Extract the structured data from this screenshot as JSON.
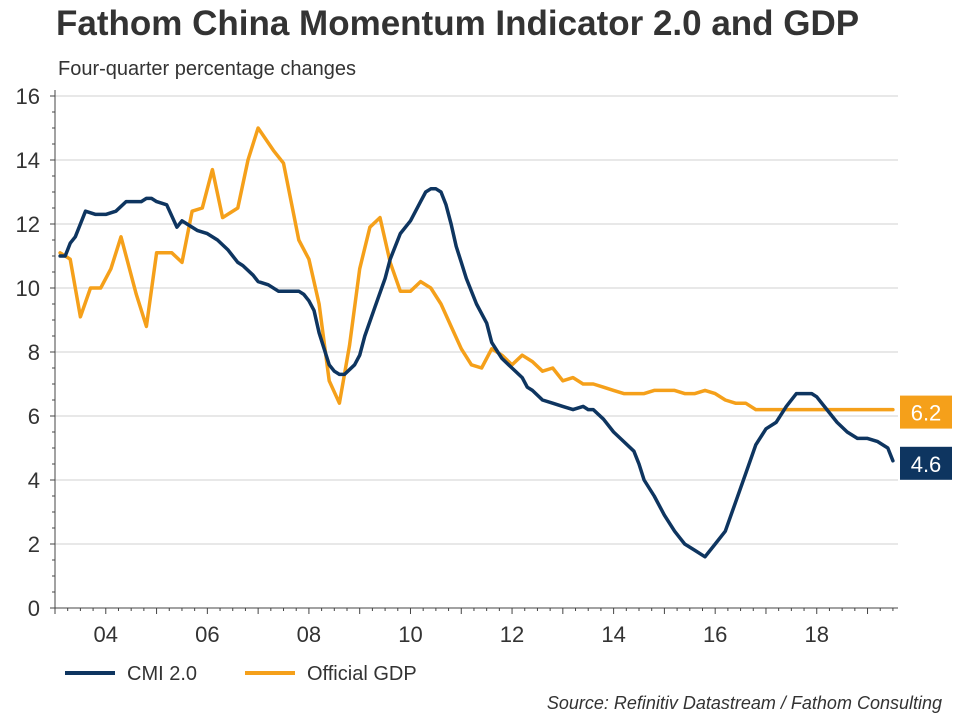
{
  "title": "Fathom China Momentum Indicator 2.0 and GDP",
  "subtitle": "Four-quarter percentage changes",
  "source": "Source: Refinitiv Datastream / Fathom Consulting",
  "chart_data": {
    "type": "line",
    "title": "Fathom China Momentum Indicator 2.0 and GDP",
    "subtitle": "Four-quarter percentage changes",
    "xlabel": "",
    "ylabel": "",
    "xlim": [
      2003.0,
      2019.6
    ],
    "ylim": [
      0,
      16
    ],
    "y_ticks": [
      0,
      2,
      4,
      6,
      8,
      10,
      12,
      14,
      16
    ],
    "x_ticks": [
      {
        "value": 2004,
        "label": "04"
      },
      {
        "value": 2006,
        "label": "06"
      },
      {
        "value": 2008,
        "label": "08"
      },
      {
        "value": 2010,
        "label": "10"
      },
      {
        "value": 2012,
        "label": "12"
      },
      {
        "value": 2014,
        "label": "14"
      },
      {
        "value": 2016,
        "label": "16"
      },
      {
        "value": 2018,
        "label": "18"
      }
    ],
    "grid": "horizontal",
    "legend_position": "bottom-left",
    "series": [
      {
        "name": "CMI 2.0",
        "color": "#0e3560",
        "end_label": "4.6",
        "x": [
          2003.1,
          2003.2,
          2003.3,
          2003.4,
          2003.5,
          2003.6,
          2003.8,
          2004.0,
          2004.2,
          2004.4,
          2004.5,
          2004.7,
          2004.8,
          2004.9,
          2005.0,
          2005.2,
          2005.4,
          2005.5,
          2005.6,
          2005.8,
          2006.0,
          2006.2,
          2006.4,
          2006.6,
          2006.7,
          2006.9,
          2007.0,
          2007.2,
          2007.4,
          2007.5,
          2007.6,
          2007.8,
          2007.9,
          2008.0,
          2008.1,
          2008.2,
          2008.4,
          2008.5,
          2008.6,
          2008.7,
          2008.9,
          2009.0,
          2009.1,
          2009.3,
          2009.5,
          2009.6,
          2009.8,
          2010.0,
          2010.2,
          2010.3,
          2010.4,
          2010.5,
          2010.6,
          2010.7,
          2010.8,
          2010.9,
          2011.0,
          2011.1,
          2011.3,
          2011.5,
          2011.6,
          2011.8,
          2012.0,
          2012.2,
          2012.3,
          2012.4,
          2012.6,
          2012.8,
          2013.0,
          2013.2,
          2013.4,
          2013.5,
          2013.6,
          2013.8,
          2014.0,
          2014.2,
          2014.4,
          2014.5,
          2014.6,
          2014.8,
          2015.0,
          2015.2,
          2015.3,
          2015.4,
          2015.6,
          2015.8,
          2016.0,
          2016.2,
          2016.4,
          2016.6,
          2016.8,
          2017.0,
          2017.2,
          2017.4,
          2017.6,
          2017.8,
          2017.9,
          2018.0,
          2018.2,
          2018.4,
          2018.6,
          2018.8,
          2019.0,
          2019.2,
          2019.4,
          2019.5
        ],
        "values": [
          11.0,
          11.0,
          11.4,
          11.6,
          12.0,
          12.4,
          12.3,
          12.3,
          12.4,
          12.7,
          12.7,
          12.7,
          12.8,
          12.8,
          12.7,
          12.6,
          11.9,
          12.1,
          12.0,
          11.8,
          11.7,
          11.5,
          11.2,
          10.8,
          10.7,
          10.4,
          10.2,
          10.1,
          9.9,
          9.9,
          9.9,
          9.9,
          9.8,
          9.6,
          9.3,
          8.6,
          7.6,
          7.4,
          7.3,
          7.3,
          7.6,
          7.9,
          8.5,
          9.4,
          10.3,
          10.9,
          11.7,
          12.1,
          12.7,
          13.0,
          13.1,
          13.1,
          13.0,
          12.6,
          12.0,
          11.3,
          10.8,
          10.3,
          9.5,
          8.9,
          8.3,
          7.8,
          7.5,
          7.2,
          6.9,
          6.8,
          6.5,
          6.4,
          6.3,
          6.2,
          6.3,
          6.2,
          6.2,
          5.9,
          5.5,
          5.2,
          4.9,
          4.5,
          4.0,
          3.5,
          2.9,
          2.4,
          2.2,
          2.0,
          1.8,
          1.6,
          2.0,
          2.4,
          3.3,
          4.2,
          5.1,
          5.6,
          5.8,
          6.3,
          6.7,
          6.7,
          6.7,
          6.6,
          6.2,
          5.8,
          5.5,
          5.3,
          5.3,
          5.2,
          5.0,
          4.6
        ]
      },
      {
        "name": "Official GDP",
        "color": "#f5a01a",
        "end_label": "6.2",
        "x": [
          2003.1,
          2003.3,
          2003.5,
          2003.7,
          2003.9,
          2004.1,
          2004.3,
          2004.6,
          2004.8,
          2005.0,
          2005.3,
          2005.5,
          2005.7,
          2005.9,
          2006.1,
          2006.3,
          2006.6,
          2006.8,
          2007.0,
          2007.3,
          2007.5,
          2007.8,
          2008.0,
          2008.2,
          2008.4,
          2008.6,
          2008.8,
          2009.0,
          2009.2,
          2009.4,
          2009.6,
          2009.8,
          2010.0,
          2010.2,
          2010.4,
          2010.6,
          2010.8,
          2011.0,
          2011.2,
          2011.4,
          2011.6,
          2011.8,
          2012.0,
          2012.2,
          2012.4,
          2012.6,
          2012.8,
          2013.0,
          2013.2,
          2013.4,
          2013.6,
          2013.8,
          2014.0,
          2014.2,
          2014.4,
          2014.6,
          2014.8,
          2015.0,
          2015.2,
          2015.4,
          2015.6,
          2015.8,
          2016.0,
          2016.2,
          2016.4,
          2016.6,
          2016.8,
          2017.0,
          2017.2,
          2017.4,
          2017.6,
          2017.8,
          2018.0,
          2018.2,
          2018.4,
          2018.6,
          2018.8,
          2019.0,
          2019.2,
          2019.4,
          2019.5
        ],
        "values": [
          11.1,
          10.9,
          9.1,
          10.0,
          10.0,
          10.6,
          11.6,
          9.8,
          8.8,
          11.1,
          11.1,
          10.8,
          12.4,
          12.5,
          13.7,
          12.2,
          12.5,
          14.0,
          15.0,
          14.3,
          13.9,
          11.5,
          10.9,
          9.5,
          7.1,
          6.4,
          8.2,
          10.6,
          11.9,
          12.2,
          10.8,
          9.9,
          9.9,
          10.2,
          10.0,
          9.5,
          8.8,
          8.1,
          7.6,
          7.5,
          8.1,
          7.9,
          7.6,
          7.9,
          7.7,
          7.4,
          7.5,
          7.1,
          7.2,
          7.0,
          7.0,
          6.9,
          6.8,
          6.7,
          6.7,
          6.7,
          6.8,
          6.8,
          6.8,
          6.7,
          6.7,
          6.8,
          6.7,
          6.5,
          6.4,
          6.4,
          6.2,
          6.2,
          6.2,
          6.2,
          6.2,
          6.2,
          6.2,
          6.2,
          6.2,
          6.2,
          6.2,
          6.2,
          6.2,
          6.2,
          6.2
        ]
      }
    ]
  }
}
